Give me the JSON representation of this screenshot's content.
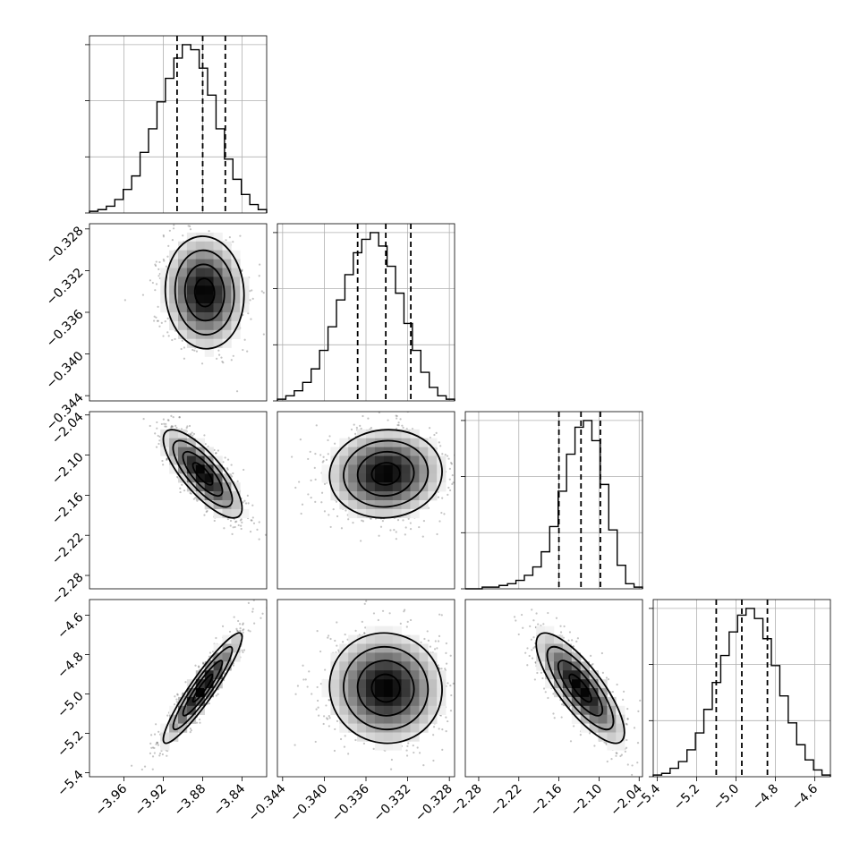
{
  "chart_data": {
    "type": "corner",
    "params": [
      {
        "id": "p1",
        "range": [
          -3.995,
          -3.815
        ],
        "ticks": [
          -3.96,
          -3.92,
          -3.88,
          -3.84
        ],
        "tick_labels": [
          "−3.96",
          "−3.92",
          "−3.88",
          "−3.84"
        ],
        "quantiles": [
          -3.906,
          -3.88,
          -3.857
        ],
        "hist_counts": [
          1,
          2,
          4,
          8,
          14,
          22,
          36,
          50,
          66,
          80,
          92,
          100,
          97,
          86,
          70,
          50,
          32,
          20,
          11,
          5,
          2
        ]
      },
      {
        "id": "p2",
        "range": [
          -0.3445,
          -0.3275
        ],
        "ticks": [
          -0.344,
          -0.34,
          -0.336,
          -0.332,
          -0.328
        ],
        "tick_labels": [
          "−0.344",
          "−0.340",
          "−0.336",
          "−0.332",
          "−0.328"
        ],
        "quantiles": [
          -0.3368,
          -0.3341,
          -0.3317
        ],
        "hist_counts": [
          1,
          3,
          6,
          11,
          19,
          30,
          44,
          60,
          75,
          88,
          96,
          100,
          92,
          80,
          64,
          46,
          30,
          17,
          8,
          3,
          1
        ]
      },
      {
        "id": "p3",
        "range": [
          -2.3,
          -2.035
        ],
        "ticks": [
          -2.28,
          -2.22,
          -2.16,
          -2.1,
          -2.04
        ],
        "tick_labels": [
          "−2.28",
          "−2.22",
          "−2.16",
          "−2.10",
          "−2.04"
        ],
        "quantiles": [
          -2.16,
          -2.127,
          -2.098
        ],
        "hist_counts": [
          0,
          0,
          1,
          1,
          2,
          3,
          5,
          8,
          13,
          22,
          37,
          58,
          80,
          96,
          100,
          88,
          62,
          35,
          14,
          3,
          1
        ]
      },
      {
        "id": "p4",
        "range": [
          -5.42,
          -4.52
        ],
        "ticks": [
          -5.4,
          -5.2,
          -5.0,
          -4.8,
          -4.6
        ],
        "tick_labels": [
          "−5.4",
          "−5.2",
          "−5.0",
          "−4.8",
          "−4.6"
        ],
        "quantiles": [
          -5.1,
          -4.97,
          -4.84
        ],
        "hist_counts": [
          1,
          2,
          5,
          9,
          16,
          26,
          40,
          56,
          72,
          86,
          96,
          100,
          94,
          82,
          66,
          48,
          32,
          19,
          10,
          4,
          1
        ]
      }
    ],
    "joint": [
      {
        "row": 1,
        "col": 0,
        "center": [
          -3.878,
          -0.3341
        ],
        "sd": [
          0.02,
          0.0027
        ],
        "rho": -0.05
      },
      {
        "row": 2,
        "col": 0,
        "center": [
          -3.88,
          -2.128
        ],
        "sd": [
          0.02,
          0.033
        ],
        "rho": -0.78
      },
      {
        "row": 2,
        "col": 1,
        "center": [
          -0.3341,
          -2.128
        ],
        "sd": [
          0.0027,
          0.033
        ],
        "rho": 0.05
      },
      {
        "row": 3,
        "col": 0,
        "center": [
          -3.88,
          -4.97
        ],
        "sd": [
          0.02,
          0.14
        ],
        "rho": 0.93
      },
      {
        "row": 3,
        "col": 1,
        "center": [
          -0.3341,
          -4.97
        ],
        "sd": [
          0.0027,
          0.14
        ],
        "rho": -0.03
      },
      {
        "row": 3,
        "col": 2,
        "center": [
          -2.128,
          -4.97
        ],
        "sd": [
          0.033,
          0.14
        ],
        "rho": -0.8
      }
    ],
    "contour_levels_sigma": [
      0.5,
      1.0,
      1.5,
      2.0
    ],
    "grid": true,
    "legend": "none",
    "title": "",
    "xlabel": "",
    "ylabel": ""
  }
}
